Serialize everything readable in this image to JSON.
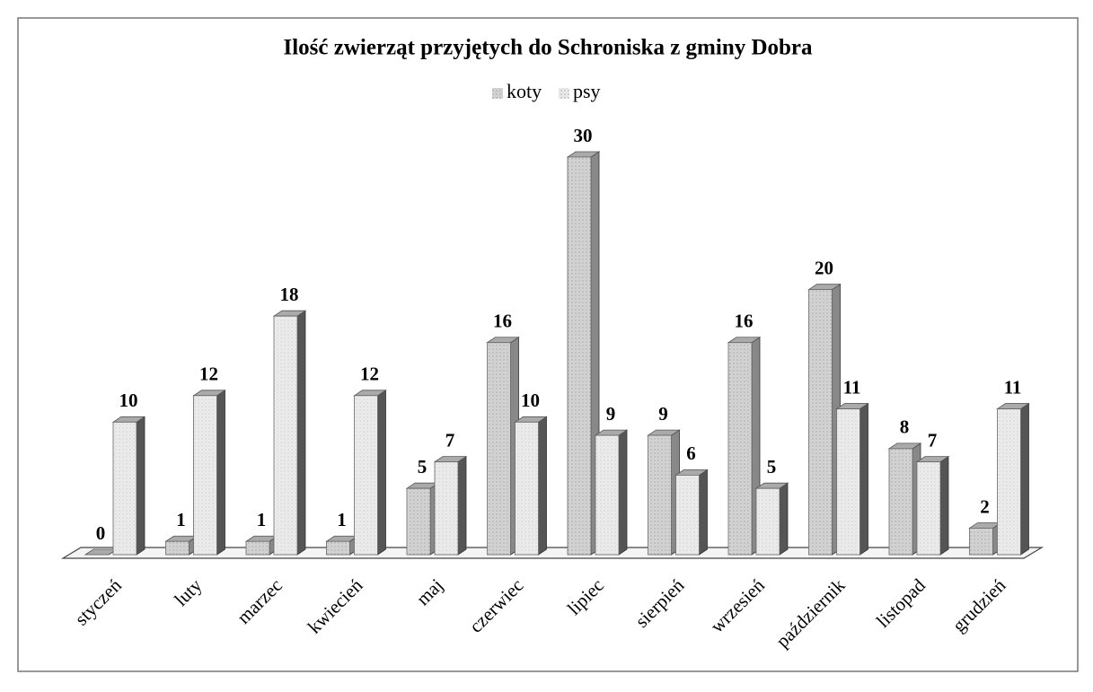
{
  "chart_data": {
    "type": "bar3d",
    "title": "Ilość zwierząt przyjętych do Schroniska z gminy Dobra",
    "categories": [
      "styczeń",
      "luty",
      "marzec",
      "kwiecień",
      "maj",
      "czerwiec",
      "lipiec",
      "sierpień",
      "wrzesień",
      "październik",
      "listopad",
      "grudzień"
    ],
    "series": [
      {
        "name": "koty",
        "color": "#d4d4d4",
        "values": [
          0,
          1,
          1,
          1,
          5,
          16,
          30,
          9,
          16,
          20,
          8,
          2
        ]
      },
      {
        "name": "psy",
        "color": "#ececec",
        "values": [
          10,
          12,
          18,
          12,
          7,
          10,
          9,
          6,
          5,
          11,
          7,
          11
        ]
      }
    ],
    "legend": "top"
  }
}
